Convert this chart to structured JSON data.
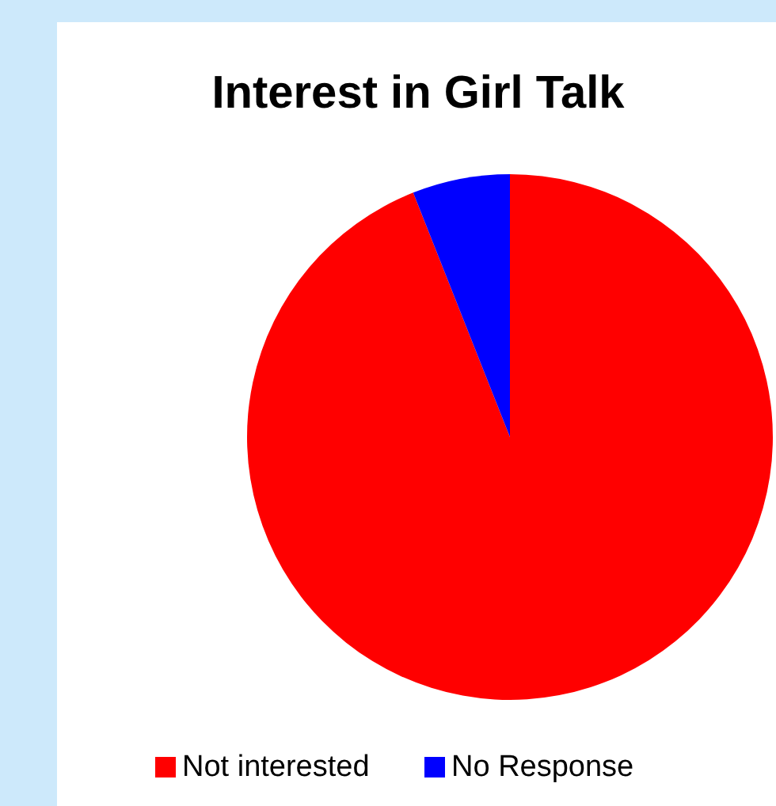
{
  "chart_data": {
    "type": "pie",
    "title": "Interest in Girl Talk",
    "categories": [
      "Not interested",
      "No Response"
    ],
    "values": [
      94,
      6
    ],
    "colors": [
      "#ff0000",
      "#0000ff"
    ],
    "legend": "bottom"
  }
}
